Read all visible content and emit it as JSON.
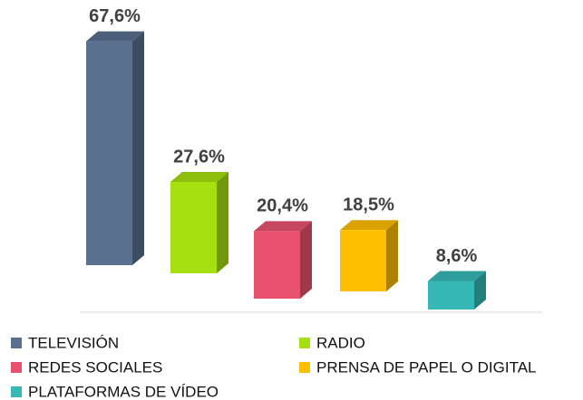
{
  "chart_data": {
    "type": "bar3d",
    "series": [
      {
        "name": "TELEVISIÓN",
        "color": "#59708f",
        "values": [
          67.6
        ],
        "value_labels": [
          "67,6%"
        ]
      },
      {
        "name": "RADIO",
        "color": "#a6e010",
        "values": [
          27.6
        ],
        "value_labels": [
          "27,6%"
        ]
      },
      {
        "name": "REDES SOCIALES",
        "color": "#e8526f",
        "values": [
          20.4
        ],
        "value_labels": [
          "20,4%"
        ]
      },
      {
        "name": "PRENSA DE PAPEL O DIGITAL",
        "color": "#ffbf00",
        "values": [
          18.5
        ],
        "value_labels": [
          "18,5%"
        ]
      },
      {
        "name": "PLATAFORMAS DE VÍDEO",
        "color": "#36b9b6",
        "values": [
          8.6
        ],
        "value_labels": [
          "8,6%"
        ]
      }
    ]
  }
}
